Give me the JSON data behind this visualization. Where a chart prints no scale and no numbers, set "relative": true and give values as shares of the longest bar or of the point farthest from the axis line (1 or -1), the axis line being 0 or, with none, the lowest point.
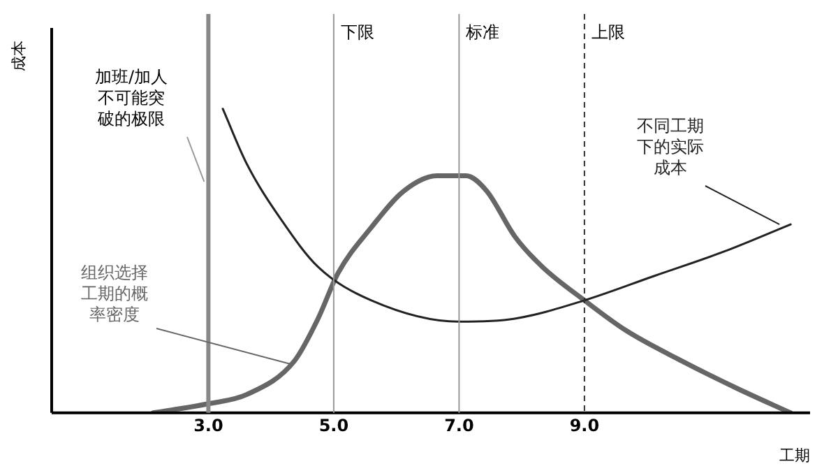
{
  "chart_data": {
    "type": "line",
    "relative": true,
    "xlabel": "工期",
    "ylabel": "成本",
    "xlim": [
      0.5,
      12.6
    ],
    "xticks": [
      {
        "value": 3,
        "label": "3.0"
      },
      {
        "value": 5,
        "label": "5.0"
      },
      {
        "value": 7,
        "label": "7.0"
      },
      {
        "value": 9,
        "label": "9.0"
      }
    ],
    "grid": false,
    "legend": false,
    "marker": "none",
    "series": [
      {
        "name": "不同工期下的实际成本",
        "color": "#222222",
        "x": [
          3.23,
          3.61,
          4.18,
          4.75,
          5.6,
          7.0,
          7.89,
          9.0,
          10.11,
          11.22,
          12.29
        ],
        "values": [
          1.0,
          0.82,
          0.63,
          0.48,
          0.37,
          0.3,
          0.31,
          0.37,
          0.45,
          0.53,
          0.62
        ]
      },
      {
        "name": "组织选择工期的概率密度",
        "color": "#666666",
        "x": [
          2.12,
          3.0,
          3.61,
          4.37,
          4.75,
          5.07,
          5.6,
          6.12,
          6.65,
          7.11,
          7.44,
          7.89,
          8.33,
          9.0,
          9.67,
          10.56,
          11.44,
          12.29
        ],
        "values": [
          0,
          0.03,
          0.06,
          0.17,
          0.31,
          0.46,
          0.61,
          0.73,
          0.78,
          0.78,
          0.73,
          0.58,
          0.48,
          0.37,
          0.27,
          0.17,
          0.08,
          0
        ]
      }
    ],
    "ref_lines": [
      {
        "axis": "x",
        "value": 3,
        "label": "加班/加人不可能突破的极限",
        "color": "#888888"
      },
      {
        "axis": "x",
        "value": 5,
        "label": "下限",
        "color": "#999999"
      },
      {
        "axis": "x",
        "value": 7,
        "label": "标准",
        "color": "#999999"
      },
      {
        "axis": "x",
        "value": 9,
        "label": "上限",
        "color": "#333333",
        "line_style": "dashed"
      }
    ]
  }
}
